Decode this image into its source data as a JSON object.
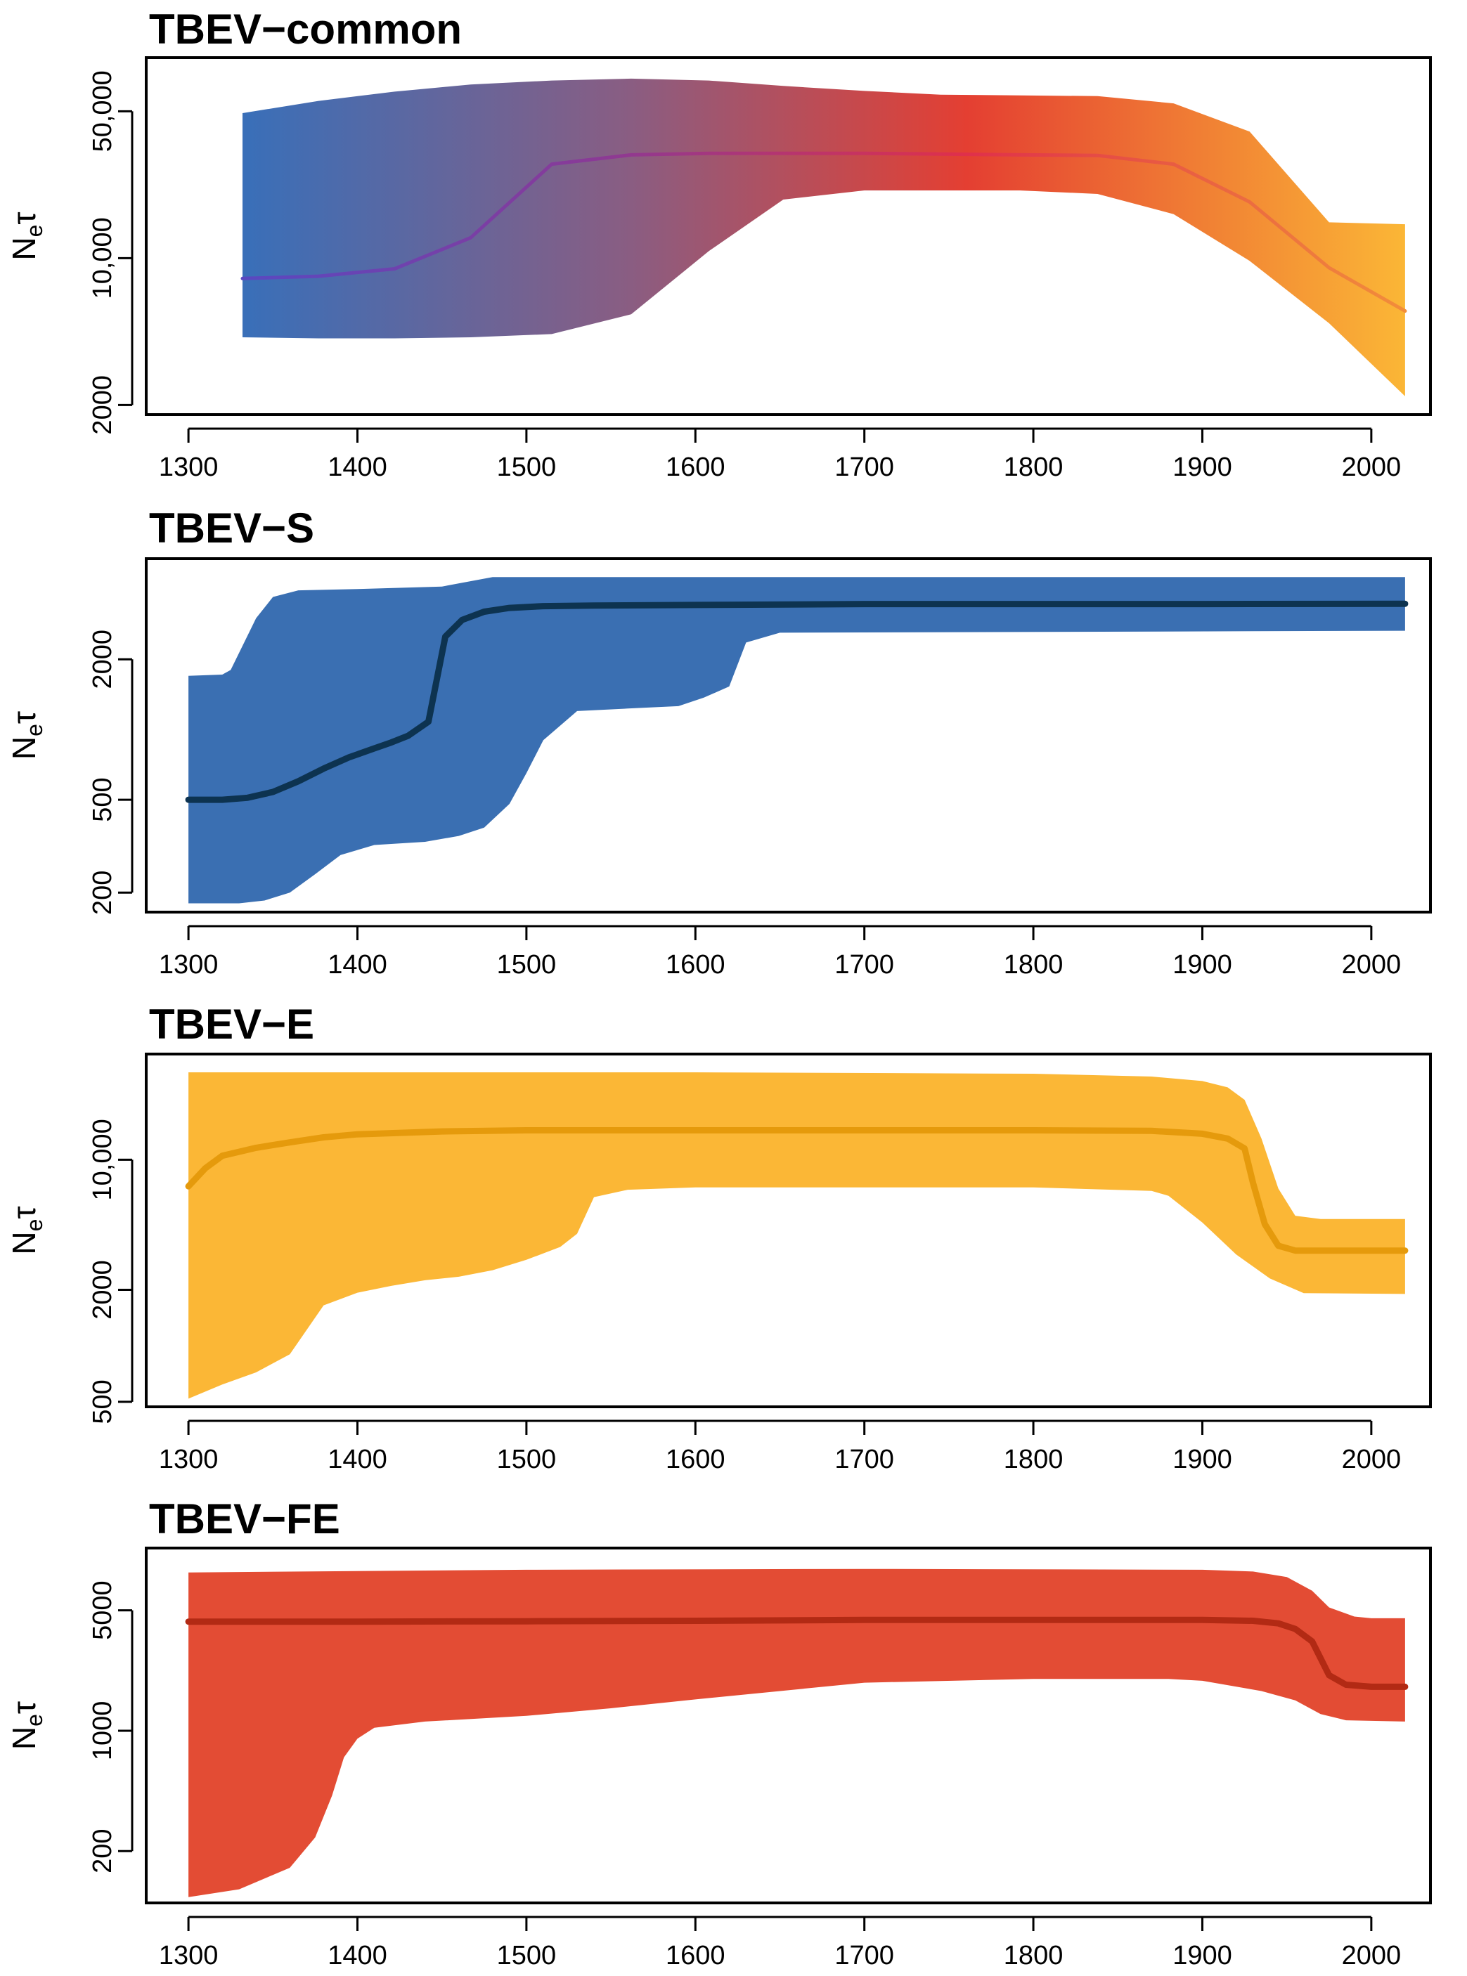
{
  "chart_data": [
    {
      "type": "area",
      "title": "TBEV−common",
      "xlabel": "",
      "ylabel": "Neτ",
      "ylabel_parts": {
        "main": "N",
        "sub": "e",
        "tail": "τ"
      },
      "yscale": "log",
      "xlim": [
        1275,
        2035
      ],
      "ylim": [
        1800,
        90000
      ],
      "xticks": [
        1300,
        1400,
        1500,
        1600,
        1700,
        1800,
        1900,
        2000
      ],
      "xtick_labels": [
        "1300",
        "1400",
        "1500",
        "1600",
        "1700",
        "1800",
        "1900",
        "2000"
      ],
      "yticks": [
        2000,
        10000,
        50000
      ],
      "ytick_labels": [
        "2000",
        "10,000",
        "50,000"
      ],
      "colors": {
        "gradient": [
          "#3a6fb8",
          "#8a5d82",
          "#e43f32",
          "#fbb736"
        ],
        "line": [
          "#5a48c0",
          "#8a3a96",
          "#e0304a",
          "#f28e3a"
        ]
      },
      "series": [
        {
          "name": "median",
          "x": [
            1332,
            1377,
            1422,
            1467,
            1515,
            1562,
            1608,
            1652,
            1700,
            1745,
            1792,
            1838,
            1883,
            1928,
            1975,
            2020
          ],
          "values": [
            8000,
            8200,
            8900,
            12500,
            28000,
            31000,
            31500,
            31500,
            31500,
            31300,
            31000,
            30800,
            28000,
            18500,
            9000,
            5600
          ]
        },
        {
          "name": "lower",
          "x": [
            1332,
            1377,
            1422,
            1467,
            1515,
            1562,
            1608,
            1652,
            1700,
            1745,
            1792,
            1838,
            1883,
            1928,
            1975,
            2020
          ],
          "values": [
            4200,
            4150,
            4150,
            4200,
            4350,
            5400,
            10800,
            19000,
            21000,
            21000,
            21000,
            20200,
            16200,
            9700,
            4900,
            2200
          ]
        },
        {
          "name": "upper",
          "x": [
            1332,
            1377,
            1422,
            1467,
            1515,
            1562,
            1608,
            1652,
            1700,
            1745,
            1792,
            1838,
            1883,
            1928,
            1975,
            2020
          ],
          "values": [
            49000,
            56000,
            62000,
            67000,
            70000,
            71500,
            70000,
            66000,
            62500,
            60000,
            59500,
            59000,
            54500,
            40000,
            14800,
            14500
          ]
        }
      ]
    },
    {
      "type": "area",
      "title": "TBEV−S",
      "xlabel": "",
      "ylabel": "Neτ",
      "ylabel_parts": {
        "main": "N",
        "sub": "e",
        "tail": "τ"
      },
      "yscale": "log",
      "xlim": [
        1275,
        2035
      ],
      "ylim": [
        165,
        5400
      ],
      "xticks": [
        1300,
        1400,
        1500,
        1600,
        1700,
        1800,
        1900,
        2000
      ],
      "xtick_labels": [
        "1300",
        "1400",
        "1500",
        "1600",
        "1700",
        "1800",
        "1900",
        "2000"
      ],
      "yticks": [
        200,
        500,
        2000
      ],
      "ytick_labels": [
        "200",
        "500",
        "2000"
      ],
      "colors": {
        "fill": "#3a6fb2",
        "line": "#0d3350"
      },
      "series": [
        {
          "name": "median",
          "x": [
            1300,
            1320,
            1335,
            1350,
            1365,
            1380,
            1395,
            1410,
            1420,
            1430,
            1442,
            1452,
            1462,
            1475,
            1490,
            1510,
            1540,
            1600,
            1700,
            1800,
            1900,
            2020
          ],
          "values": [
            500,
            500,
            510,
            540,
            600,
            680,
            760,
            830,
            880,
            940,
            1080,
            2500,
            2950,
            3200,
            3320,
            3380,
            3400,
            3420,
            3450,
            3450,
            3450,
            3460
          ]
        },
        {
          "name": "lower",
          "x": [
            1300,
            1330,
            1345,
            1360,
            1375,
            1390,
            1410,
            1440,
            1460,
            1475,
            1490,
            1500,
            1510,
            1530,
            1560,
            1590,
            1605,
            1620,
            1630,
            1650,
            2020
          ],
          "values": [
            180,
            180,
            185,
            200,
            240,
            290,
            320,
            330,
            350,
            380,
            480,
            650,
            900,
            1200,
            1230,
            1260,
            1370,
            1530,
            2360,
            2600,
            2650
          ]
        },
        {
          "name": "upper",
          "x": [
            1300,
            1320,
            1325,
            1340,
            1350,
            1365,
            1400,
            1450,
            1480,
            1550,
            1650,
            1800,
            2020
          ],
          "values": [
            1700,
            1720,
            1800,
            3000,
            3700,
            3950,
            4000,
            4100,
            4500,
            4500,
            4500,
            4500,
            4500
          ]
        }
      ]
    },
    {
      "type": "area",
      "title": "TBEV−E",
      "xlabel": "",
      "ylabel": "Neτ",
      "ylabel_parts": {
        "main": "N",
        "sub": "e",
        "tail": "τ"
      },
      "yscale": "log",
      "xlim": [
        1275,
        2035
      ],
      "ylim": [
        470,
        37000
      ],
      "xticks": [
        1300,
        1400,
        1500,
        1600,
        1700,
        1800,
        1900,
        2000
      ],
      "xtick_labels": [
        "1300",
        "1400",
        "1500",
        "1600",
        "1700",
        "1800",
        "1900",
        "2000"
      ],
      "yticks": [
        500,
        2000,
        10000
      ],
      "ytick_labels": [
        "500",
        "2000",
        "10,000"
      ],
      "colors": {
        "fill": "#fbb736",
        "line": "#e59a0c"
      },
      "series": [
        {
          "name": "median",
          "x": [
            1300,
            1310,
            1320,
            1340,
            1360,
            1380,
            1400,
            1450,
            1500,
            1600,
            1700,
            1800,
            1870,
            1900,
            1915,
            1925,
            1930,
            1937,
            1945,
            1955,
            2020
          ],
          "values": [
            7200,
            9000,
            10500,
            11600,
            12400,
            13200,
            13700,
            14200,
            14400,
            14400,
            14400,
            14400,
            14300,
            13800,
            13000,
            11500,
            7500,
            4500,
            3450,
            3250,
            3250
          ]
        },
        {
          "name": "lower",
          "x": [
            1300,
            1320,
            1340,
            1360,
            1380,
            1400,
            1420,
            1440,
            1460,
            1480,
            1500,
            1520,
            1530,
            1540,
            1560,
            1600,
            1700,
            1800,
            1870,
            1880,
            1900,
            1920,
            1940,
            1960,
            2020
          ],
          "values": [
            520,
            620,
            720,
            900,
            1650,
            1930,
            2100,
            2250,
            2350,
            2550,
            2900,
            3400,
            4000,
            6300,
            6900,
            7100,
            7100,
            7100,
            6800,
            6400,
            4600,
            3100,
            2300,
            1920,
            1900
          ]
        },
        {
          "name": "upper",
          "x": [
            1300,
            1400,
            1600,
            1800,
            1870,
            1900,
            1915,
            1925,
            1935,
            1945,
            1955,
            1970,
            2020
          ],
          "values": [
            29500,
            29500,
            29500,
            29000,
            28000,
            26500,
            24500,
            21000,
            13000,
            7000,
            5000,
            4800,
            4800
          ]
        }
      ]
    },
    {
      "type": "area",
      "title": "TBEV−FE",
      "xlabel": "",
      "ylabel": "Neτ",
      "ylabel_parts": {
        "main": "N",
        "sub": "e",
        "tail": "τ"
      },
      "yscale": "log",
      "xlim": [
        1275,
        2035
      ],
      "ylim": [
        100,
        11500
      ],
      "xticks": [
        1300,
        1400,
        1500,
        1600,
        1700,
        1800,
        1900,
        2000
      ],
      "xtick_labels": [
        "1300",
        "1400",
        "1500",
        "1600",
        "1700",
        "1800",
        "1900",
        "2000"
      ],
      "yticks": [
        200,
        1000,
        5000
      ],
      "ytick_labels": [
        "200",
        "1000",
        "5000"
      ],
      "colors": {
        "fill": "#e34c34",
        "line": "#b22a14"
      },
      "series": [
        {
          "name": "median",
          "x": [
            1300,
            1400,
            1500,
            1600,
            1700,
            1800,
            1900,
            1930,
            1945,
            1955,
            1965,
            1975,
            1985,
            2000,
            2020
          ],
          "values": [
            4300,
            4300,
            4320,
            4350,
            4400,
            4400,
            4400,
            4350,
            4200,
            3900,
            3300,
            2100,
            1850,
            1800,
            1800
          ]
        },
        {
          "name": "lower",
          "x": [
            1300,
            1330,
            1360,
            1375,
            1385,
            1392,
            1400,
            1410,
            1440,
            1500,
            1550,
            1600,
            1700,
            1800,
            1880,
            1900,
            1935,
            1955,
            1970,
            1985,
            2020
          ],
          "values": [
            108,
            120,
            160,
            240,
            420,
            700,
            900,
            1040,
            1130,
            1220,
            1350,
            1520,
            1900,
            2000,
            2000,
            1950,
            1700,
            1500,
            1250,
            1150,
            1130
          ]
        },
        {
          "name": "upper",
          "x": [
            1300,
            1500,
            1700,
            1900,
            1930,
            1950,
            1965,
            1975,
            1990,
            2000,
            2020
          ],
          "values": [
            8300,
            8600,
            8700,
            8600,
            8400,
            7800,
            6500,
            5200,
            4600,
            4500,
            4500
          ]
        }
      ]
    }
  ]
}
